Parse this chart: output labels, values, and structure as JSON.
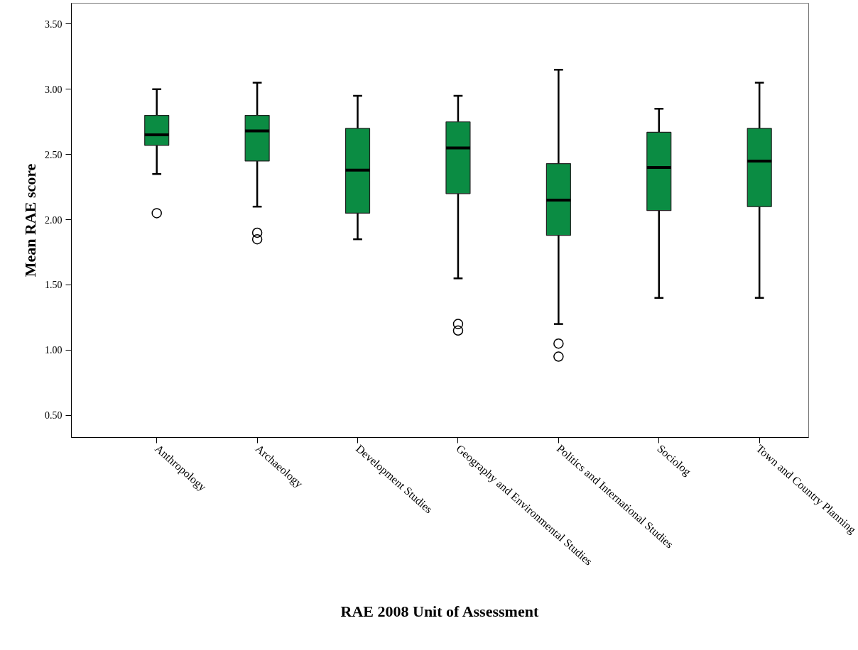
{
  "chart_data": {
    "type": "box",
    "xlabel": "RAE 2008 Unit of Assessment",
    "ylabel": "Mean RAE score",
    "categories": [
      "Anthropology",
      "Archaeology",
      "Development Studies",
      "Geography and Environmental Studies",
      "Politics and International Studies",
      "Sociolog",
      "Town and Country Planning"
    ],
    "color": "#0b8c43",
    "boxes": [
      {
        "low": 2.35,
        "q1": 2.57,
        "median": 2.65,
        "q3": 2.8,
        "high": 3.0,
        "outliers": [
          2.05
        ]
      },
      {
        "low": 2.1,
        "q1": 2.45,
        "median": 2.68,
        "q3": 2.8,
        "high": 3.05,
        "outliers": [
          1.9,
          1.85
        ]
      },
      {
        "low": 1.85,
        "q1": 2.05,
        "median": 2.38,
        "q3": 2.7,
        "high": 2.95
      },
      {
        "low": 1.55,
        "q1": 2.2,
        "median": 2.55,
        "q3": 2.75,
        "high": 2.95,
        "outliers": [
          1.2,
          1.15
        ]
      },
      {
        "low": 1.2,
        "q1": 1.88,
        "median": 2.15,
        "q3": 2.43,
        "high": 3.15,
        "outliers": [
          1.05,
          0.95
        ]
      },
      {
        "low": 1.4,
        "q1": 2.07,
        "median": 2.4,
        "q3": 2.67,
        "high": 2.85
      },
      {
        "low": 1.4,
        "q1": 2.1,
        "median": 2.45,
        "q3": 2.7,
        "high": 3.05
      }
    ],
    "ylim": [
      0.33,
      3.66
    ],
    "yticks": [
      {
        "value": 0.5,
        "label": "0.50"
      },
      {
        "value": 1.0,
        "label": "1.00"
      },
      {
        "value": 1.5,
        "label": "1.50"
      },
      {
        "value": 2.0,
        "label": "2.00"
      },
      {
        "value": 2.5,
        "label": "2.50"
      },
      {
        "value": 3.0,
        "label": "3.00"
      },
      {
        "value": 3.5,
        "label": "3.50"
      }
    ]
  }
}
